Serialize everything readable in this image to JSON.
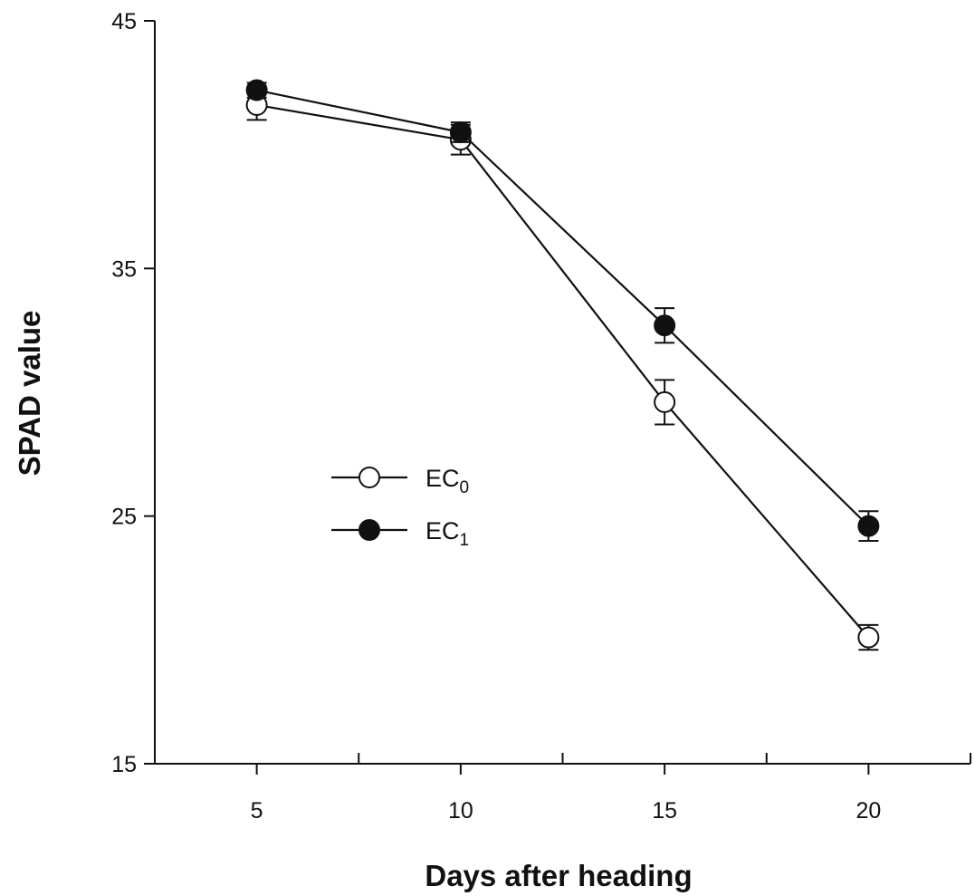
{
  "chart_data": {
    "type": "line",
    "title": "",
    "xlabel": "Days after heading",
    "ylabel": "SPAD value",
    "x": [
      5,
      10,
      15,
      20
    ],
    "xlim": [
      2.5,
      22.5
    ],
    "ylim": [
      15,
      45
    ],
    "xticks": [
      5,
      10,
      15,
      20
    ],
    "xtick_labels": [
      "5",
      "10",
      "15",
      "20"
    ],
    "xminor_ticks": [
      2.5,
      7.5,
      12.5,
      17.5,
      22.5
    ],
    "yticks": [
      15,
      25,
      35,
      45
    ],
    "ytick_labels": [
      "15",
      "25",
      "35",
      "45"
    ],
    "grid": false,
    "legend_position": "center-left",
    "series": [
      {
        "name": "EC0",
        "legend_main": "EC",
        "legend_sub": "0",
        "marker": "open-circle",
        "color": "#111111",
        "fill": "#ffffff",
        "values": [
          41.6,
          40.2,
          29.6,
          20.1
        ],
        "errors": [
          0.6,
          0.6,
          0.9,
          0.5
        ]
      },
      {
        "name": "EC1",
        "legend_main": "EC",
        "legend_sub": "1",
        "marker": "filled-circle",
        "color": "#111111",
        "fill": "#111111",
        "values": [
          42.2,
          40.5,
          32.7,
          24.6
        ],
        "errors": [
          0.3,
          0.4,
          0.7,
          0.6
        ]
      }
    ]
  }
}
